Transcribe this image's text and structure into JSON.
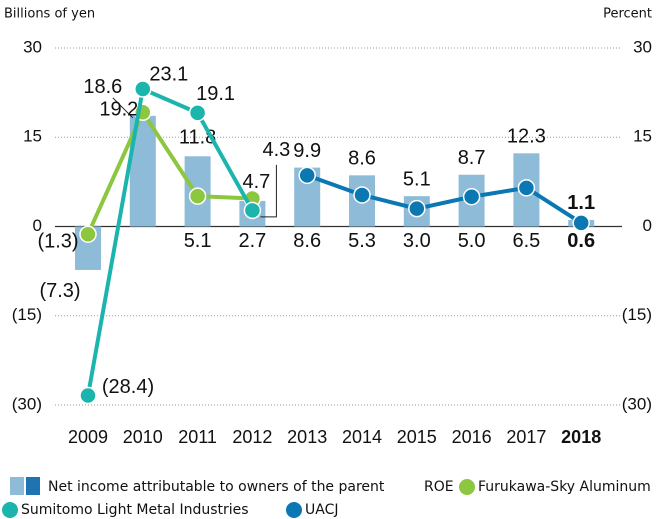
{
  "chart_data": {
    "type": "bar+line",
    "y_label": "Billions of yen",
    "y2_label": "Percent",
    "legend_title": "ROE",
    "categories": [
      "2009",
      "2010",
      "2011",
      "2012",
      "2013",
      "2014",
      "2015",
      "2016",
      "2017",
      "2018"
    ],
    "ylim": [
      -30,
      30
    ],
    "yticks": [
      30,
      15,
      0,
      {
        "value": -15,
        "label": "(15)"
      },
      {
        "value": -30,
        "label": "(30)"
      }
    ],
    "y2lim": [
      -30,
      30
    ],
    "y2ticks": [
      30,
      15,
      0,
      {
        "value": -15,
        "label": "(15)"
      },
      {
        "value": -30,
        "label": "(30)"
      }
    ],
    "grid": true,
    "series": [
      {
        "name": "Net income attributable to owners of the parent",
        "kind": "bar",
        "color": "#8dbbd8",
        "color2": "#1e73b0",
        "values": [
          -7.3,
          18.6,
          11.8,
          4.3,
          9.9,
          8.6,
          5.1,
          8.7,
          12.3,
          1.1
        ],
        "value_labels": [
          "(7.3)",
          "18.6",
          "11.8",
          "4.3",
          "9.9",
          "8.6",
          "5.1",
          "8.7",
          "12.3",
          "1.1"
        ]
      },
      {
        "name": "Furukawa-Sky Aluminum",
        "kind": "line",
        "axis": "y2",
        "color": "#8dc63f",
        "values": [
          -1.3,
          19.2,
          5.1,
          4.7,
          null,
          null,
          null,
          null,
          null,
          null
        ],
        "value_labels": [
          "(1.3)",
          "19.2",
          "5.1",
          "4.7",
          null,
          null,
          null,
          null,
          null,
          null
        ]
      },
      {
        "name": "Sumitomo Light Metal Industries",
        "kind": "line",
        "axis": "y2",
        "color": "#1cb5ad",
        "values": [
          -28.4,
          23.1,
          19.1,
          2.7,
          null,
          null,
          null,
          null,
          null,
          null
        ],
        "value_labels": [
          "(28.4)",
          "23.1",
          "19.1",
          "2.7",
          null,
          null,
          null,
          null,
          null,
          null
        ]
      },
      {
        "name": "UACJ",
        "kind": "line",
        "axis": "y2",
        "color": "#0b78b3",
        "values": [
          null,
          null,
          null,
          null,
          8.6,
          5.3,
          3.0,
          5.0,
          6.5,
          0.6
        ],
        "value_labels": [
          null,
          null,
          null,
          null,
          "8.6",
          "5.3",
          "3.0",
          "5.0",
          "6.5",
          "0.6"
        ]
      }
    ]
  }
}
